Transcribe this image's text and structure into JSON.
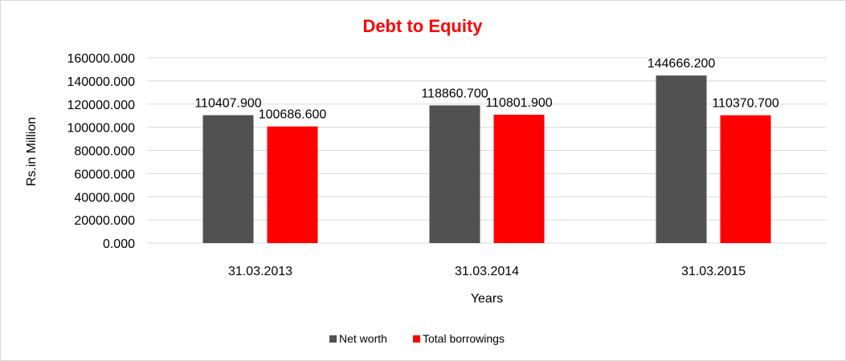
{
  "chart_data": {
    "type": "bar",
    "title": "Debt to Equity",
    "xlabel": "Years",
    "ylabel": "Rs.in Million",
    "categories": [
      "31.03.2013",
      "31.03.2014",
      "31.03.2015"
    ],
    "series": [
      {
        "name": "Net worth",
        "color": "#515151",
        "values": [
          110407.9,
          118860.7,
          144666.2
        ]
      },
      {
        "name": "Total borrowings",
        "color": "#ff0000",
        "values": [
          100686.6,
          110801.9,
          110370.7
        ]
      }
    ],
    "ylim": [
      0,
      160000
    ],
    "yticks": [
      0,
      20000,
      40000,
      60000,
      80000,
      100000,
      120000,
      140000,
      160000
    ],
    "ytick_labels": [
      "0.000",
      "20000.000",
      "40000.000",
      "60000.000",
      "80000.000",
      "100000.000",
      "120000.000",
      "140000.000",
      "160000.000"
    ],
    "data_labels": [
      [
        "110407.900",
        "100686.600"
      ],
      [
        "118860.700",
        "110801.900"
      ],
      [
        "144666.200",
        "110370.700"
      ]
    ],
    "title_color": "#ff0000",
    "gridlines": true,
    "legend_position": "bottom"
  }
}
